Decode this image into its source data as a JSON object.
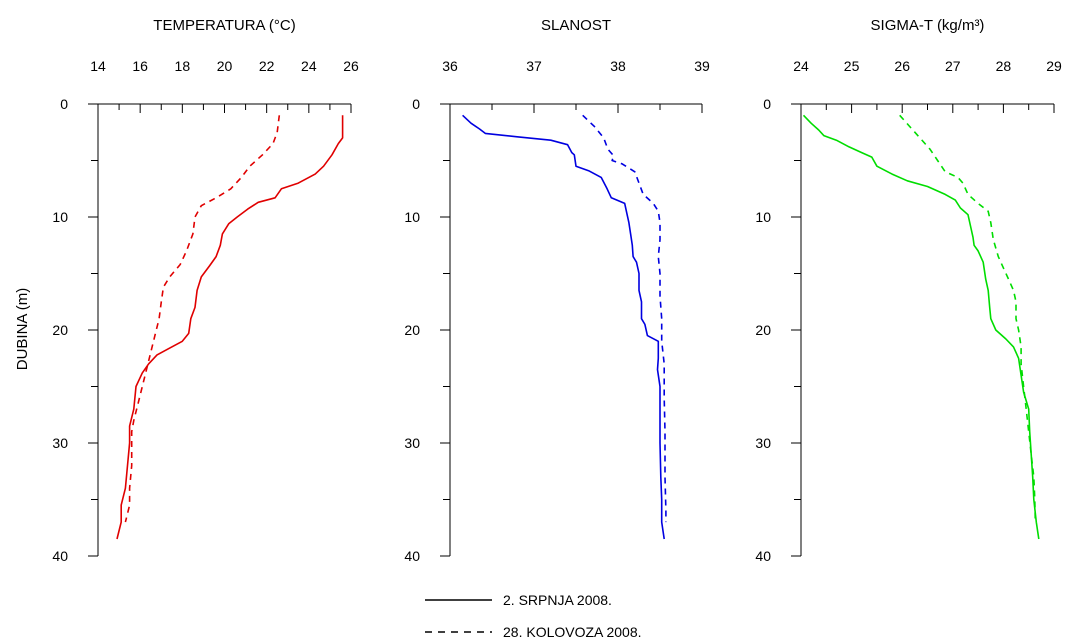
{
  "chart_data": [
    {
      "type": "line",
      "title": "TEMPERATURA (°C)",
      "ylabel": "DUBINA (m)",
      "xlim": [
        14,
        26
      ],
      "ylim": [
        0,
        40
      ],
      "y_inverted": true,
      "x_ticks": [
        "14",
        "16",
        "18",
        "20",
        "22",
        "24",
        "26"
      ],
      "y_ticks": [
        "0",
        "10",
        "20",
        "30",
        "40"
      ],
      "x_minor_step": 1,
      "y_minor_step": 5,
      "color": "#e00000",
      "series": [
        {
          "name": "2. SRPNJA 2008.",
          "style": "solid",
          "points": [
            [
              25.6,
              1
            ],
            [
              25.6,
              2
            ],
            [
              25.6,
              3
            ],
            [
              25.4,
              3.5
            ],
            [
              25.1,
              4.5
            ],
            [
              24.7,
              5.5
            ],
            [
              24.3,
              6.2
            ],
            [
              23.5,
              7
            ],
            [
              22.7,
              7.5
            ],
            [
              22.4,
              8.3
            ],
            [
              21.6,
              8.7
            ],
            [
              21.1,
              9.3
            ],
            [
              20.6,
              10
            ],
            [
              20.2,
              10.6
            ],
            [
              19.9,
              11.5
            ],
            [
              19.8,
              12.5
            ],
            [
              19.6,
              13.5
            ],
            [
              19.3,
              14.3
            ],
            [
              18.9,
              15.3
            ],
            [
              18.7,
              16.5
            ],
            [
              18.6,
              18
            ],
            [
              18.4,
              19
            ],
            [
              18.3,
              20.3
            ],
            [
              18,
              21
            ],
            [
              17.4,
              21.6
            ],
            [
              16.8,
              22.2
            ],
            [
              16.4,
              23
            ],
            [
              16.1,
              23.8
            ],
            [
              15.8,
              25
            ],
            [
              15.7,
              27
            ],
            [
              15.5,
              28.5
            ],
            [
              15.5,
              30
            ],
            [
              15.4,
              32
            ],
            [
              15.3,
              34
            ],
            [
              15.1,
              35.5
            ],
            [
              15.1,
              37
            ],
            [
              14.9,
              38.5
            ]
          ]
        },
        {
          "name": "28. KOLOVOZA 2008.",
          "style": "dashed",
          "points": [
            [
              22.6,
              1
            ],
            [
              22.5,
              2.5
            ],
            [
              22.3,
              3.5
            ],
            [
              21.8,
              4.5
            ],
            [
              21.2,
              5.5
            ],
            [
              20.8,
              6.5
            ],
            [
              20.3,
              7.5
            ],
            [
              19.6,
              8.3
            ],
            [
              18.9,
              9
            ],
            [
              18.6,
              10
            ],
            [
              18.5,
              11.5
            ],
            [
              18.2,
              13
            ],
            [
              17.9,
              14.2
            ],
            [
              17.4,
              15.3
            ],
            [
              17.1,
              16.2
            ],
            [
              17,
              17.5
            ],
            [
              16.9,
              19
            ],
            [
              16.7,
              20.5
            ],
            [
              16.5,
              22
            ],
            [
              16.3,
              23.5
            ],
            [
              16.1,
              25
            ],
            [
              15.9,
              26.5
            ],
            [
              15.7,
              28
            ],
            [
              15.6,
              29
            ],
            [
              15.6,
              32
            ],
            [
              15.5,
              34
            ],
            [
              15.5,
              35.5
            ],
            [
              15.3,
              37
            ]
          ]
        }
      ]
    },
    {
      "type": "line",
      "title": "SLANOST",
      "xlim": [
        36,
        39
      ],
      "ylim": [
        0,
        40
      ],
      "y_inverted": true,
      "x_ticks": [
        "36",
        "37",
        "38",
        "39"
      ],
      "y_ticks": [
        "0",
        "10",
        "20",
        "30",
        "40"
      ],
      "x_minor_step": 0.5,
      "y_minor_step": 5,
      "color": "#0000e0",
      "series": [
        {
          "name": "2. SRPNJA 2008.",
          "style": "solid",
          "points": [
            [
              36.15,
              1
            ],
            [
              36.25,
              1.7
            ],
            [
              36.35,
              2.2
            ],
            [
              36.42,
              2.6
            ],
            [
              36.8,
              2.9
            ],
            [
              37.2,
              3.2
            ],
            [
              37.4,
              3.6
            ],
            [
              37.45,
              4.3
            ],
            [
              37.48,
              4.5
            ],
            [
              37.5,
              5.5
            ],
            [
              37.65,
              5.9
            ],
            [
              37.8,
              6.5
            ],
            [
              37.87,
              7.5
            ],
            [
              37.92,
              8.3
            ],
            [
              38.08,
              8.8
            ],
            [
              38.1,
              9.5
            ],
            [
              38.13,
              10.5
            ],
            [
              38.15,
              11.5
            ],
            [
              38.17,
              12.5
            ],
            [
              38.18,
              13.5
            ],
            [
              38.22,
              14
            ],
            [
              38.25,
              15
            ],
            [
              38.25,
              16.5
            ],
            [
              38.28,
              17.5
            ],
            [
              38.28,
              19
            ],
            [
              38.32,
              19.5
            ],
            [
              38.35,
              20.5
            ],
            [
              38.48,
              21
            ],
            [
              38.48,
              22.5
            ],
            [
              38.47,
              23.5
            ],
            [
              38.5,
              25
            ],
            [
              38.5,
              27
            ],
            [
              38.5,
              30
            ],
            [
              38.51,
              33
            ],
            [
              38.52,
              35
            ],
            [
              38.52,
              37
            ],
            [
              38.55,
              38.5
            ]
          ]
        },
        {
          "name": "28. KOLOVOZA 2008.",
          "style": "dashed",
          "points": [
            [
              37.58,
              1
            ],
            [
              37.72,
              2
            ],
            [
              37.83,
              3
            ],
            [
              37.88,
              4
            ],
            [
              37.95,
              4.6
            ],
            [
              37.93,
              5
            ],
            [
              38.05,
              5.3
            ],
            [
              38.2,
              6
            ],
            [
              38.25,
              7
            ],
            [
              38.3,
              8
            ],
            [
              38.42,
              8.8
            ],
            [
              38.48,
              9.5
            ],
            [
              38.5,
              10.5
            ],
            [
              38.5,
              12
            ],
            [
              38.48,
              13.5
            ],
            [
              38.5,
              15
            ],
            [
              38.5,
              17
            ],
            [
              38.52,
              19
            ],
            [
              38.52,
              21
            ],
            [
              38.55,
              23
            ],
            [
              38.55,
              26
            ],
            [
              38.56,
              29
            ],
            [
              38.56,
              33
            ],
            [
              38.57,
              36
            ],
            [
              38.57,
              37
            ]
          ]
        }
      ]
    },
    {
      "type": "line",
      "title": "SIGMA-T (kg/m³)",
      "xlim": [
        24,
        29
      ],
      "ylim": [
        0,
        40
      ],
      "y_inverted": true,
      "x_ticks": [
        "24",
        "25",
        "26",
        "27",
        "28",
        "29"
      ],
      "y_ticks": [
        "0",
        "10",
        "20",
        "30",
        "40"
      ],
      "x_minor_step": 0.5,
      "y_minor_step": 5,
      "color": "#00dd00",
      "series": [
        {
          "name": "2. SRPNJA 2008.",
          "style": "solid",
          "points": [
            [
              24.05,
              1
            ],
            [
              24.2,
              1.7
            ],
            [
              24.35,
              2.3
            ],
            [
              24.45,
              2.8
            ],
            [
              24.7,
              3.2
            ],
            [
              24.95,
              3.8
            ],
            [
              25.2,
              4.3
            ],
            [
              25.4,
              4.7
            ],
            [
              25.5,
              5.5
            ],
            [
              25.8,
              6.2
            ],
            [
              26.1,
              6.8
            ],
            [
              26.5,
              7.3
            ],
            [
              26.85,
              8
            ],
            [
              27.05,
              8.5
            ],
            [
              27.15,
              9.2
            ],
            [
              27.3,
              9.8
            ],
            [
              27.35,
              10.8
            ],
            [
              27.4,
              11.8
            ],
            [
              27.42,
              12.5
            ],
            [
              27.5,
              13
            ],
            [
              27.6,
              14
            ],
            [
              27.65,
              15.5
            ],
            [
              27.7,
              16.5
            ],
            [
              27.73,
              18
            ],
            [
              27.75,
              19
            ],
            [
              27.85,
              20
            ],
            [
              28.05,
              20.8
            ],
            [
              28.2,
              21.5
            ],
            [
              28.3,
              22.5
            ],
            [
              28.35,
              24
            ],
            [
              28.4,
              25.5
            ],
            [
              28.5,
              27
            ],
            [
              28.52,
              29
            ],
            [
              28.55,
              31
            ],
            [
              28.58,
              33
            ],
            [
              28.6,
              35
            ],
            [
              28.65,
              37
            ],
            [
              28.7,
              38.5
            ]
          ]
        },
        {
          "name": "28. KOLOVOZA 2008.",
          "style": "dashed",
          "points": [
            [
              25.95,
              1
            ],
            [
              26.15,
              2
            ],
            [
              26.35,
              3
            ],
            [
              26.55,
              4
            ],
            [
              26.7,
              5
            ],
            [
              26.85,
              6
            ],
            [
              27.1,
              6.5
            ],
            [
              27.2,
              7
            ],
            [
              27.3,
              8
            ],
            [
              27.5,
              8.8
            ],
            [
              27.7,
              9.5
            ],
            [
              27.75,
              10.5
            ],
            [
              27.8,
              12
            ],
            [
              27.9,
              13.5
            ],
            [
              28,
              14.5
            ],
            [
              28.1,
              15.5
            ],
            [
              28.2,
              16.5
            ],
            [
              28.25,
              17.5
            ],
            [
              28.25,
              19
            ],
            [
              28.3,
              20
            ],
            [
              28.35,
              21.5
            ],
            [
              28.35,
              23
            ],
            [
              28.4,
              25
            ],
            [
              28.45,
              27
            ],
            [
              28.5,
              29
            ],
            [
              28.55,
              31
            ],
            [
              28.6,
              33
            ],
            [
              28.62,
              35
            ],
            [
              28.63,
              37
            ]
          ]
        }
      ]
    }
  ],
  "legend": {
    "placement": "bottom-center",
    "items": [
      {
        "label": "2. SRPNJA 2008.",
        "style": "solid"
      },
      {
        "label": "28. KOLOVOZA 2008.",
        "style": "dashed"
      }
    ]
  }
}
